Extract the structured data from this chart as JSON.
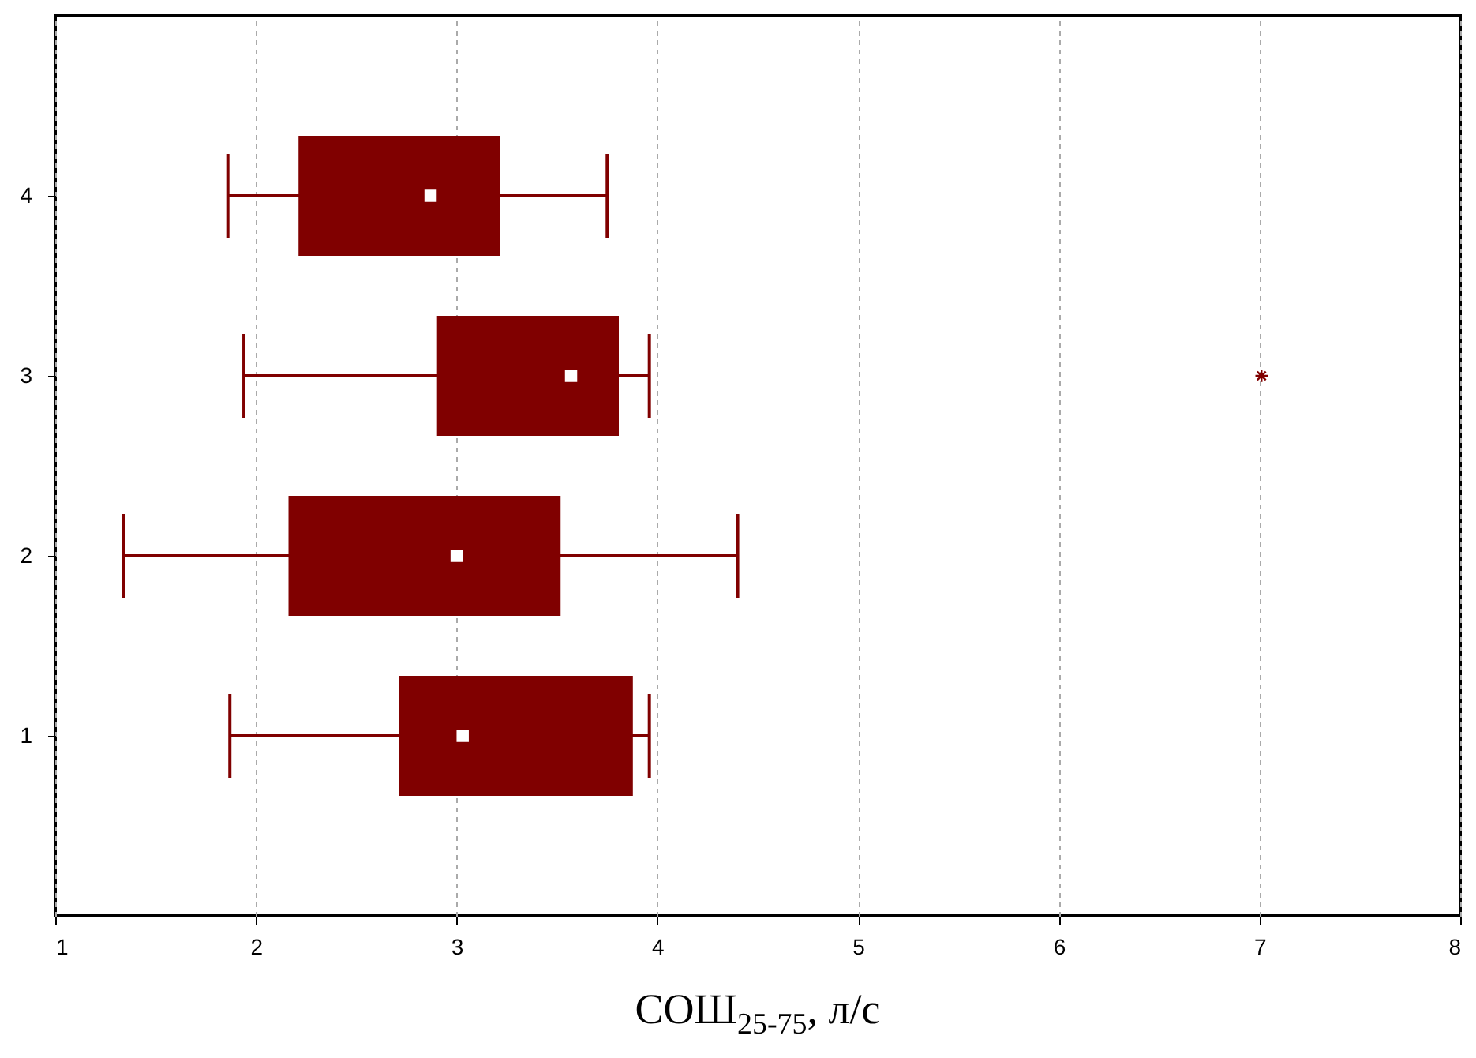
{
  "chart_data": {
    "type": "box",
    "orientation": "horizontal",
    "xlabel": "СОШ$_{25-75}$, л/с",
    "categories": [
      "4",
      "3",
      "2",
      "1"
    ],
    "color": "#800000",
    "boxes": [
      {
        "low": 1.86,
        "q1": 2.22,
        "median": 2.87,
        "q3": 3.21,
        "high": 3.75
      },
      {
        "low": 1.94,
        "q1": 2.91,
        "median": 3.57,
        "q3": 3.8,
        "high": 3.96,
        "outliers": [
          7.01
        ]
      },
      {
        "low": 1.34,
        "q1": 2.17,
        "median": 3.0,
        "q3": 3.51,
        "high": 4.4
      },
      {
        "low": 1.87,
        "q1": 2.72,
        "median": 3.03,
        "q3": 3.87,
        "high": 3.96
      }
    ],
    "xlim": [
      1,
      8
    ],
    "xticks": [
      1,
      2,
      3,
      4,
      5,
      6,
      7,
      8
    ],
    "grid": "x"
  }
}
